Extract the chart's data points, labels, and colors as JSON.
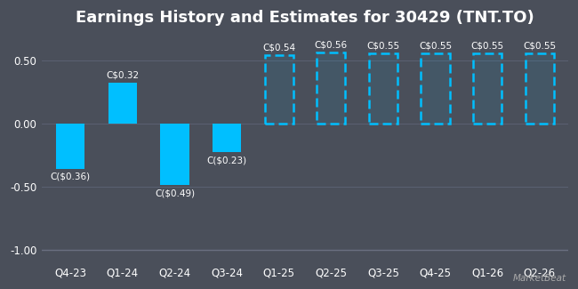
{
  "title": "Earnings History and Estimates for 30429 (TNT.TO)",
  "categories": [
    "Q4-23",
    "Q1-24",
    "Q2-24",
    "Q3-24",
    "Q1-25",
    "Q2-25",
    "Q3-25",
    "Q4-25",
    "Q1-26",
    "Q2-26"
  ],
  "values": [
    -0.36,
    0.32,
    -0.49,
    -0.23,
    0.54,
    0.56,
    0.55,
    0.55,
    0.55,
    0.55
  ],
  "labels": [
    "C($0.36)",
    "C$0.32",
    "C($0.49)",
    "C($0.23)",
    "C$0.54",
    "C$0.56",
    "C$0.55",
    "C$0.55",
    "C$0.55",
    "C$0.55"
  ],
  "is_estimate": [
    false,
    false,
    false,
    false,
    true,
    true,
    true,
    true,
    true,
    true
  ],
  "bar_color": "#00bfff",
  "background_color": "#4a4f5a",
  "text_color": "#ffffff",
  "grid_color": "#5a6070",
  "line_color": "#6a7080",
  "ylim": [
    -1.1,
    0.72
  ],
  "yticks": [
    -1.0,
    -0.5,
    0.0,
    0.5
  ],
  "ytick_labels": [
    "-1.00",
    "-0.50",
    "0.00",
    "0.50"
  ],
  "title_fontsize": 13,
  "label_fontsize": 7.5,
  "tick_fontsize": 8.5,
  "bar_width": 0.55
}
